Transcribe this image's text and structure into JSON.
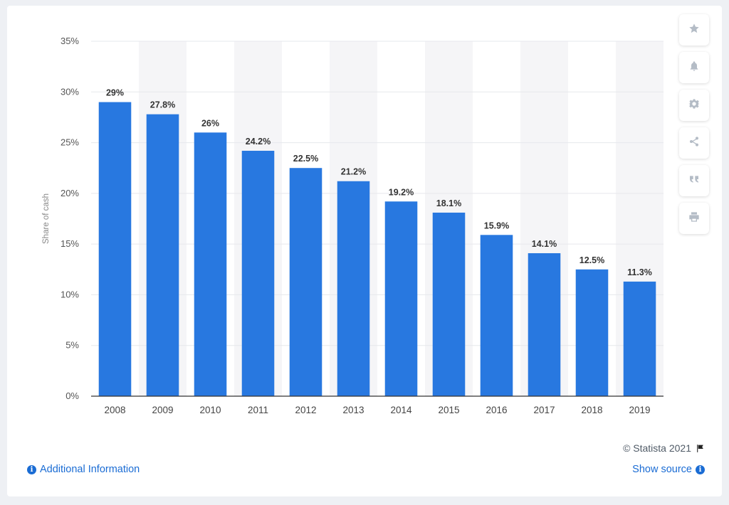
{
  "chart_data": {
    "type": "bar",
    "categories": [
      "2008",
      "2009",
      "2010",
      "2011",
      "2012",
      "2013",
      "2014",
      "2015",
      "2016",
      "2017",
      "2018",
      "2019"
    ],
    "values": [
      29,
      27.8,
      26,
      24.2,
      22.5,
      21.2,
      19.2,
      18.1,
      15.9,
      14.1,
      12.5,
      11.3
    ],
    "data_labels": [
      "29%",
      "27.8%",
      "26%",
      "24.2%",
      "22.5%",
      "21.2%",
      "19.2%",
      "18.1%",
      "15.9%",
      "14.1%",
      "12.5%",
      "11.3%"
    ],
    "ylabel": "Share of cash",
    "ylim": [
      0,
      35
    ],
    "yticks": [
      0,
      5,
      10,
      15,
      20,
      25,
      30,
      35
    ],
    "ytick_labels": [
      "0%",
      "5%",
      "10%",
      "15%",
      "20%",
      "25%",
      "30%",
      "35%"
    ],
    "grid": true,
    "bar_color": "#2878e0",
    "alternate_band_color": "#f5f5f7"
  },
  "toolbar": {
    "icons": [
      "star-icon",
      "bell-icon",
      "gear-icon",
      "share-icon",
      "quote-icon",
      "print-icon"
    ]
  },
  "footer": {
    "credit": "© Statista 2021",
    "additional_info": "Additional Information",
    "show_source": "Show source"
  },
  "colors": {
    "link": "#1a6cd4",
    "icon": "#b4bcc6"
  }
}
